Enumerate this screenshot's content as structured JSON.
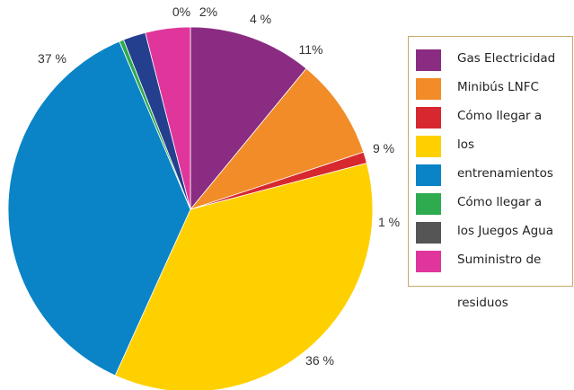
{
  "chart_data": {
    "type": "pie",
    "slices": [
      {
        "name": "Gas Electricidad",
        "value": 11,
        "label": "11%",
        "color": "#8a2c82"
      },
      {
        "name": "Minibús LNFC",
        "value": 9,
        "label": "9 %",
        "color": "#f28c28"
      },
      {
        "name": "Cómo llegar a los entrenamientos",
        "value": 1,
        "label": "1 %",
        "color": "#d7282f"
      },
      {
        "name": "",
        "value": 36,
        "label": "36 %",
        "color": "#ffd000"
      },
      {
        "name": "",
        "value": 37,
        "label": "37 %",
        "color": "#0a84c6"
      },
      {
        "name": "Cómo llegar a los Juegos Agua",
        "value": 0.4,
        "label": "0%",
        "color": "#2eaa4f"
      },
      {
        "name": "",
        "value": 2,
        "label": "2%",
        "color": "#253f8f"
      },
      {
        "name": "Suministro de residuos",
        "value": 4,
        "label": "4 %",
        "color": "#e0359b"
      }
    ],
    "legend": {
      "position": "right",
      "items": [
        {
          "label": "Gas Electricidad",
          "color": "#8a2c82"
        },
        {
          "label": "Minibús LNFC",
          "color": "#f28c28"
        },
        {
          "label": "Cómo llegar a",
          "color": "#d7282f"
        },
        {
          "label": "los",
          "color": "#ffd000"
        },
        {
          "label": "entrenamientos",
          "color": "#0a84c6"
        },
        {
          "label": "Cómo llegar a",
          "color": "#2eaa4f"
        },
        {
          "label": "los Juegos Agua",
          "color": "#555555"
        },
        {
          "label": "Suministro de",
          "color": "#e0359b"
        }
      ],
      "overflow_text": "residuos"
    }
  }
}
